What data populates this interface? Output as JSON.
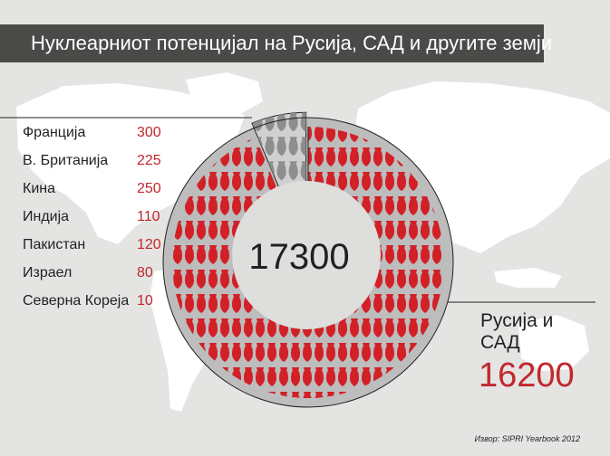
{
  "title": "Нуклеарниот потенцијал на Русија, САД и другите земји",
  "source": "Извор: SIPRI Yearbook 2012",
  "colors": {
    "russia_usa": "#d22027",
    "others": "#8e8e8e",
    "accent_text": "#c1272d",
    "title_bg": "#4a4a48",
    "map": "#ffffff",
    "background": "#e4e4e2"
  },
  "chart_data": {
    "type": "pie",
    "title": "Нуклеарниот потенцијал на Русија, САД и другите земји",
    "total_label": "17300",
    "total": 17300,
    "russia_usa": {
      "name": "Русија и САД",
      "value": 16200,
      "label": "16200",
      "color": "#d22027"
    },
    "others": [
      {
        "name": "Франција",
        "value": 300,
        "label": "300"
      },
      {
        "name": "В. Британија",
        "value": 225,
        "label": "225"
      },
      {
        "name": "Кина",
        "value": 250,
        "label": "250"
      },
      {
        "name": "Индија",
        "value": 110,
        "label": "110"
      },
      {
        "name": "Пакистан",
        "value": 120,
        "label": "120"
      },
      {
        "name": "Израел",
        "value": 80,
        "label": "80"
      },
      {
        "name": "Северна Кореја",
        "value": 10,
        "label": "10"
      }
    ],
    "others_color": "#8e8e8e",
    "icon": "bomb-icon"
  }
}
